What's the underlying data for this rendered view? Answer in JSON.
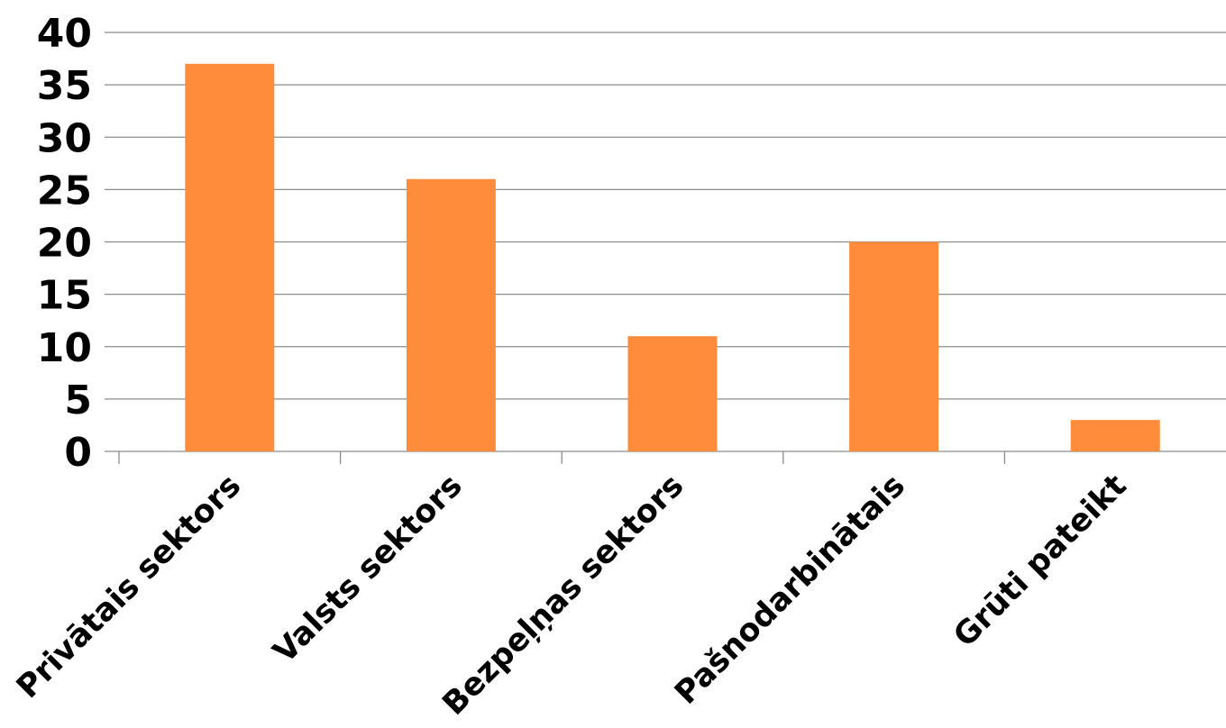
{
  "chart_data": {
    "type": "bar",
    "categories": [
      "Privātais sektors",
      "Valsts sektors",
      "Bezpeļņas sektors",
      "Pašnodarbinātais",
      "Grūti pateikt"
    ],
    "series": [
      {
        "values": [
          37,
          26,
          11,
          20,
          3
        ]
      }
    ],
    "title": "",
    "xlabel": "",
    "ylabel": "",
    "ylim": [
      0,
      40
    ],
    "yticks": [
      "0",
      "5",
      "10",
      "15",
      "20",
      "25",
      "30",
      "35",
      "40"
    ],
    "grid": true,
    "legend": "none",
    "bar_color": "#FF8C3A"
  }
}
